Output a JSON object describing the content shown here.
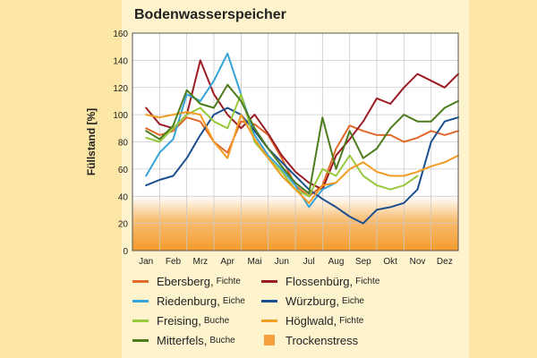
{
  "title": "Bodenwasserspeicher",
  "colors": {
    "Ebersberg": "#e2692a",
    "Flossenbuerg": "#9b1c24",
    "Riedenburg": "#36a4d8",
    "Wuerzburg": "#1c4f8f",
    "Freising": "#98c83b",
    "Hoeglwald": "#f29c23",
    "Mitterfels": "#4c7c1c",
    "Trockenstress": "#f5a03c"
  },
  "chart_data": {
    "type": "line",
    "title": "Bodenwasserspeicher",
    "xlabel": "",
    "ylabel": "Füllstand [%]",
    "ylim": [
      0,
      160
    ],
    "yticks": [
      "0",
      "20",
      "40",
      "60",
      "80",
      "100",
      "120",
      "140",
      "160"
    ],
    "categories": [
      "Jan",
      "Feb",
      "Mrz",
      "Apr",
      "Mai",
      "Jun",
      "Jul",
      "Aug",
      "Sep",
      "Okt",
      "Nov",
      "Dez"
    ],
    "grid": true,
    "band": {
      "label": "Trockenstress",
      "from": 0,
      "to": 40
    },
    "series": [
      {
        "name": "Ebersberg",
        "subname": "Fichte",
        "x": [
          0.0,
          0.5,
          1.0,
          1.5,
          2.0,
          2.5,
          3.0,
          3.5,
          4.0,
          4.5,
          5.0,
          5.5,
          6.0,
          6.5,
          7.0,
          7.5,
          8.0,
          8.5,
          9.0,
          9.5,
          10.0,
          10.5,
          11.0,
          11.5
        ],
        "values": [
          90,
          85,
          88,
          98,
          95,
          80,
          72,
          95,
          93,
          85,
          68,
          48,
          40,
          48,
          75,
          92,
          88,
          85,
          85,
          80,
          83,
          88,
          85,
          88
        ]
      },
      {
        "name": "Flossenbürg",
        "subname": "Fichte",
        "x": [
          0.0,
          0.5,
          1.0,
          1.5,
          2.0,
          2.5,
          3.0,
          3.5,
          4.0,
          4.5,
          5.0,
          5.5,
          6.0,
          6.5,
          7.0,
          7.5,
          8.0,
          8.5,
          9.0,
          9.5,
          10.0,
          10.5,
          11.0,
          11.5
        ],
        "values": [
          105,
          93,
          90,
          100,
          140,
          115,
          100,
          90,
          100,
          86,
          70,
          58,
          50,
          45,
          70,
          82,
          95,
          112,
          108,
          120,
          130,
          125,
          120,
          130
        ]
      },
      {
        "name": "Riedenburg",
        "subname": "Eiche",
        "x": [
          0.0,
          0.5,
          1.0,
          1.5,
          2.0,
          2.5,
          3.0,
          3.5,
          4.0,
          4.5,
          5.0,
          5.5,
          6.0,
          6.5,
          7.0
        ],
        "values": [
          55,
          72,
          82,
          115,
          110,
          125,
          145,
          115,
          85,
          70,
          60,
          48,
          32,
          45,
          50
        ]
      },
      {
        "name": "Würzburg",
        "subname": "Eiche",
        "x": [
          0.0,
          0.5,
          1.0,
          1.5,
          2.0,
          2.5,
          3.0,
          3.5,
          4.0,
          4.5,
          5.0,
          5.5,
          6.0,
          6.5,
          7.0,
          7.5,
          8.0,
          8.5,
          9.0,
          9.5,
          10.0,
          10.5,
          11.0,
          11.5
        ],
        "values": [
          48,
          52,
          55,
          68,
          85,
          100,
          105,
          100,
          88,
          75,
          65,
          55,
          45,
          38,
          32,
          25,
          20,
          30,
          32,
          35,
          45,
          80,
          95,
          98
        ]
      },
      {
        "name": "Freising",
        "subname": "Buche",
        "x": [
          0.0,
          0.5,
          1.0,
          1.5,
          2.0,
          2.5,
          3.0,
          3.5,
          4.0,
          4.5,
          5.0,
          5.5,
          6.0,
          6.5,
          7.0,
          7.5,
          8.0,
          8.5,
          9.0,
          9.5,
          10.0
        ],
        "values": [
          83,
          80,
          90,
          100,
          105,
          95,
          90,
          115,
          80,
          68,
          58,
          45,
          40,
          60,
          55,
          70,
          55,
          48,
          45,
          48,
          55
        ]
      },
      {
        "name": "Höglwald",
        "subname": "Fichte",
        "x": [
          0.0,
          0.5,
          1.0,
          1.5,
          2.0,
          2.5,
          3.0,
          3.5,
          4.0,
          4.5,
          5.0,
          5.5,
          6.0,
          6.5,
          7.0,
          7.5,
          8.0,
          8.5,
          9.0,
          9.5,
          10.0,
          10.5,
          11.0,
          11.5
        ],
        "values": [
          100,
          98,
          100,
          102,
          100,
          80,
          68,
          100,
          82,
          68,
          55,
          45,
          35,
          48,
          50,
          60,
          65,
          58,
          55,
          55,
          58,
          62,
          65,
          70
        ]
      },
      {
        "name": "Mitterfels",
        "subname": "Buche",
        "x": [
          0.0,
          0.5,
          1.0,
          1.5,
          2.0,
          2.5,
          3.0,
          3.5,
          4.0,
          4.5,
          5.0,
          5.5,
          6.0,
          6.5,
          7.0,
          7.5,
          8.0,
          8.5,
          9.0,
          9.5,
          10.0,
          10.5,
          11.0,
          11.5
        ],
        "values": [
          88,
          82,
          92,
          118,
          108,
          105,
          122,
          110,
          90,
          75,
          62,
          50,
          42,
          98,
          60,
          88,
          68,
          75,
          90,
          100,
          95,
          95,
          105,
          110
        ]
      }
    ]
  },
  "legend": {
    "items": [
      {
        "label": "Ebersberg,",
        "sub": "Fichte",
        "key": "Ebersberg"
      },
      {
        "label": "Flossenbürg,",
        "sub": "Fichte",
        "key": "Flossenbuerg"
      },
      {
        "label": "Riedenburg,",
        "sub": "Eiche",
        "key": "Riedenburg"
      },
      {
        "label": "Würzburg,",
        "sub": "Eiche",
        "key": "Wuerzburg"
      },
      {
        "label": "Freising,",
        "sub": "Buche",
        "key": "Freising"
      },
      {
        "label": "Höglwald,",
        "sub": "Fichte",
        "key": "Hoeglwald"
      },
      {
        "label": "Mitterfels,",
        "sub": "Buche",
        "key": "Mitterfels"
      },
      {
        "label": "Trockenstress",
        "sub": "",
        "key": "Trockenstress"
      }
    ]
  }
}
